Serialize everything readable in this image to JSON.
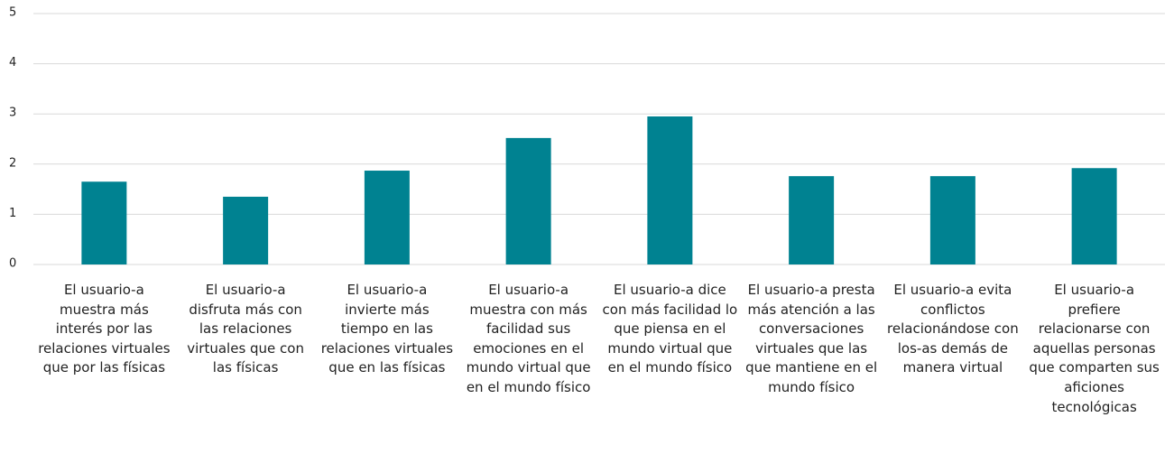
{
  "chart_data": {
    "type": "bar",
    "categories": [
      "El usuario-a muestra más interés por las relaciones virtuales que por las físicas",
      "El usuario-a disfruta más con las relaciones virtuales que con las físicas",
      "El usuario-a invierte más tiempo en las relaciones virtuales que en las físicas",
      "El usuario-a muestra con más facilidad sus emociones en el mundo virtual que en el mundo físico",
      "El usuario-a dice con más facilidad lo que piensa en el mundo virtual que en el mundo físico",
      "El usuario-a presta más atención a las conversaciones virtuales que las que mantiene en el mundo físico",
      "El usuario-a evita conflictos relacionándose con los-as demás de manera virtual",
      "El usuario-a prefiere relacionarse con aquellas personas que comparten sus aficiones tecnológicas"
    ],
    "values": [
      1.65,
      1.35,
      1.87,
      2.52,
      2.95,
      1.76,
      1.76,
      1.92
    ],
    "color": "#008291",
    "ylim": [
      0,
      5
    ],
    "yticks": [
      0,
      1,
      2,
      3,
      4,
      5
    ],
    "grid": true
  }
}
